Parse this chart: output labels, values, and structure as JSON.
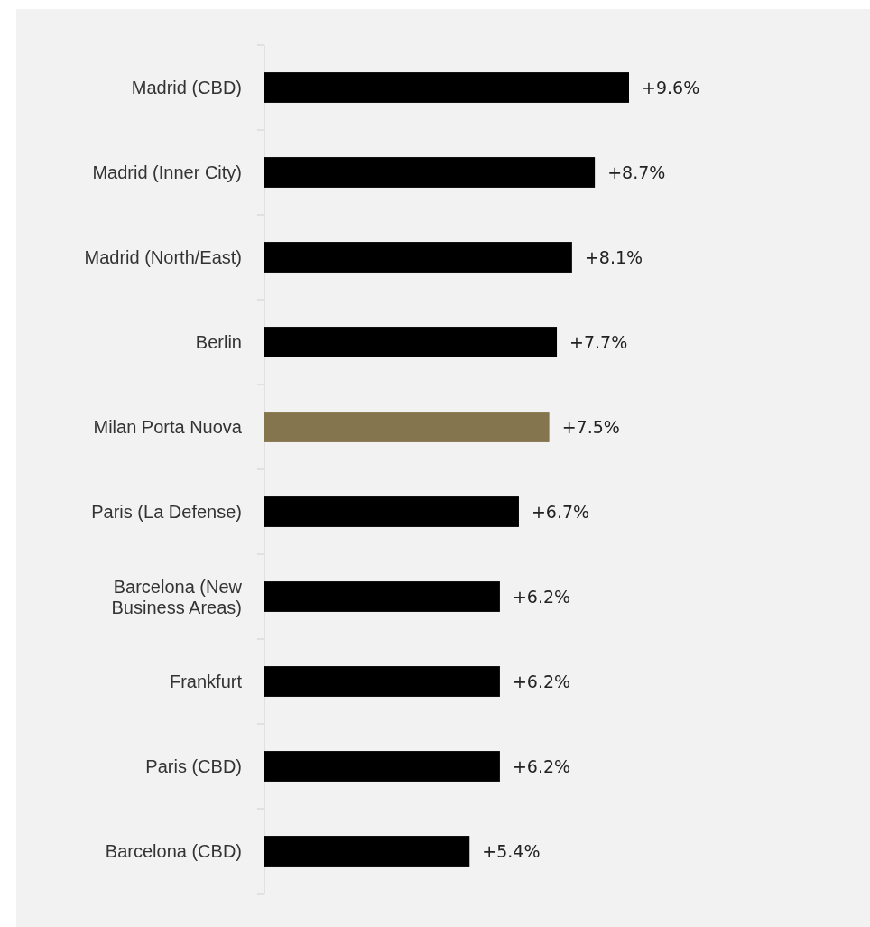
{
  "chart_data": {
    "type": "bar",
    "orientation": "horizontal",
    "categories": [
      "Madrid (CBD)",
      "Madrid (Inner City)",
      "Madrid (North/East)",
      "Berlin",
      "Milan Porta Nuova",
      "Paris (La Defense)",
      "Barcelona (New Business Areas)",
      "Frankfurt",
      "Paris (CBD)",
      "Barcelona (CBD)"
    ],
    "values": [
      9.6,
      8.7,
      8.1,
      7.7,
      7.5,
      6.7,
      6.2,
      6.2,
      6.2,
      5.4
    ],
    "colors": [
      "#000000",
      "#000000",
      "#000000",
      "#000000",
      "#85754e",
      "#000000",
      "#000000",
      "#000000",
      "#000000",
      "#000000"
    ],
    "value_labels": [
      "+9.6%",
      "+8.7%",
      "+8.1%",
      "+7.7%",
      "+7.5%",
      "+6.7%",
      "+6.2%",
      "+6.2%",
      "+6.2%",
      "+5.4%"
    ]
  }
}
